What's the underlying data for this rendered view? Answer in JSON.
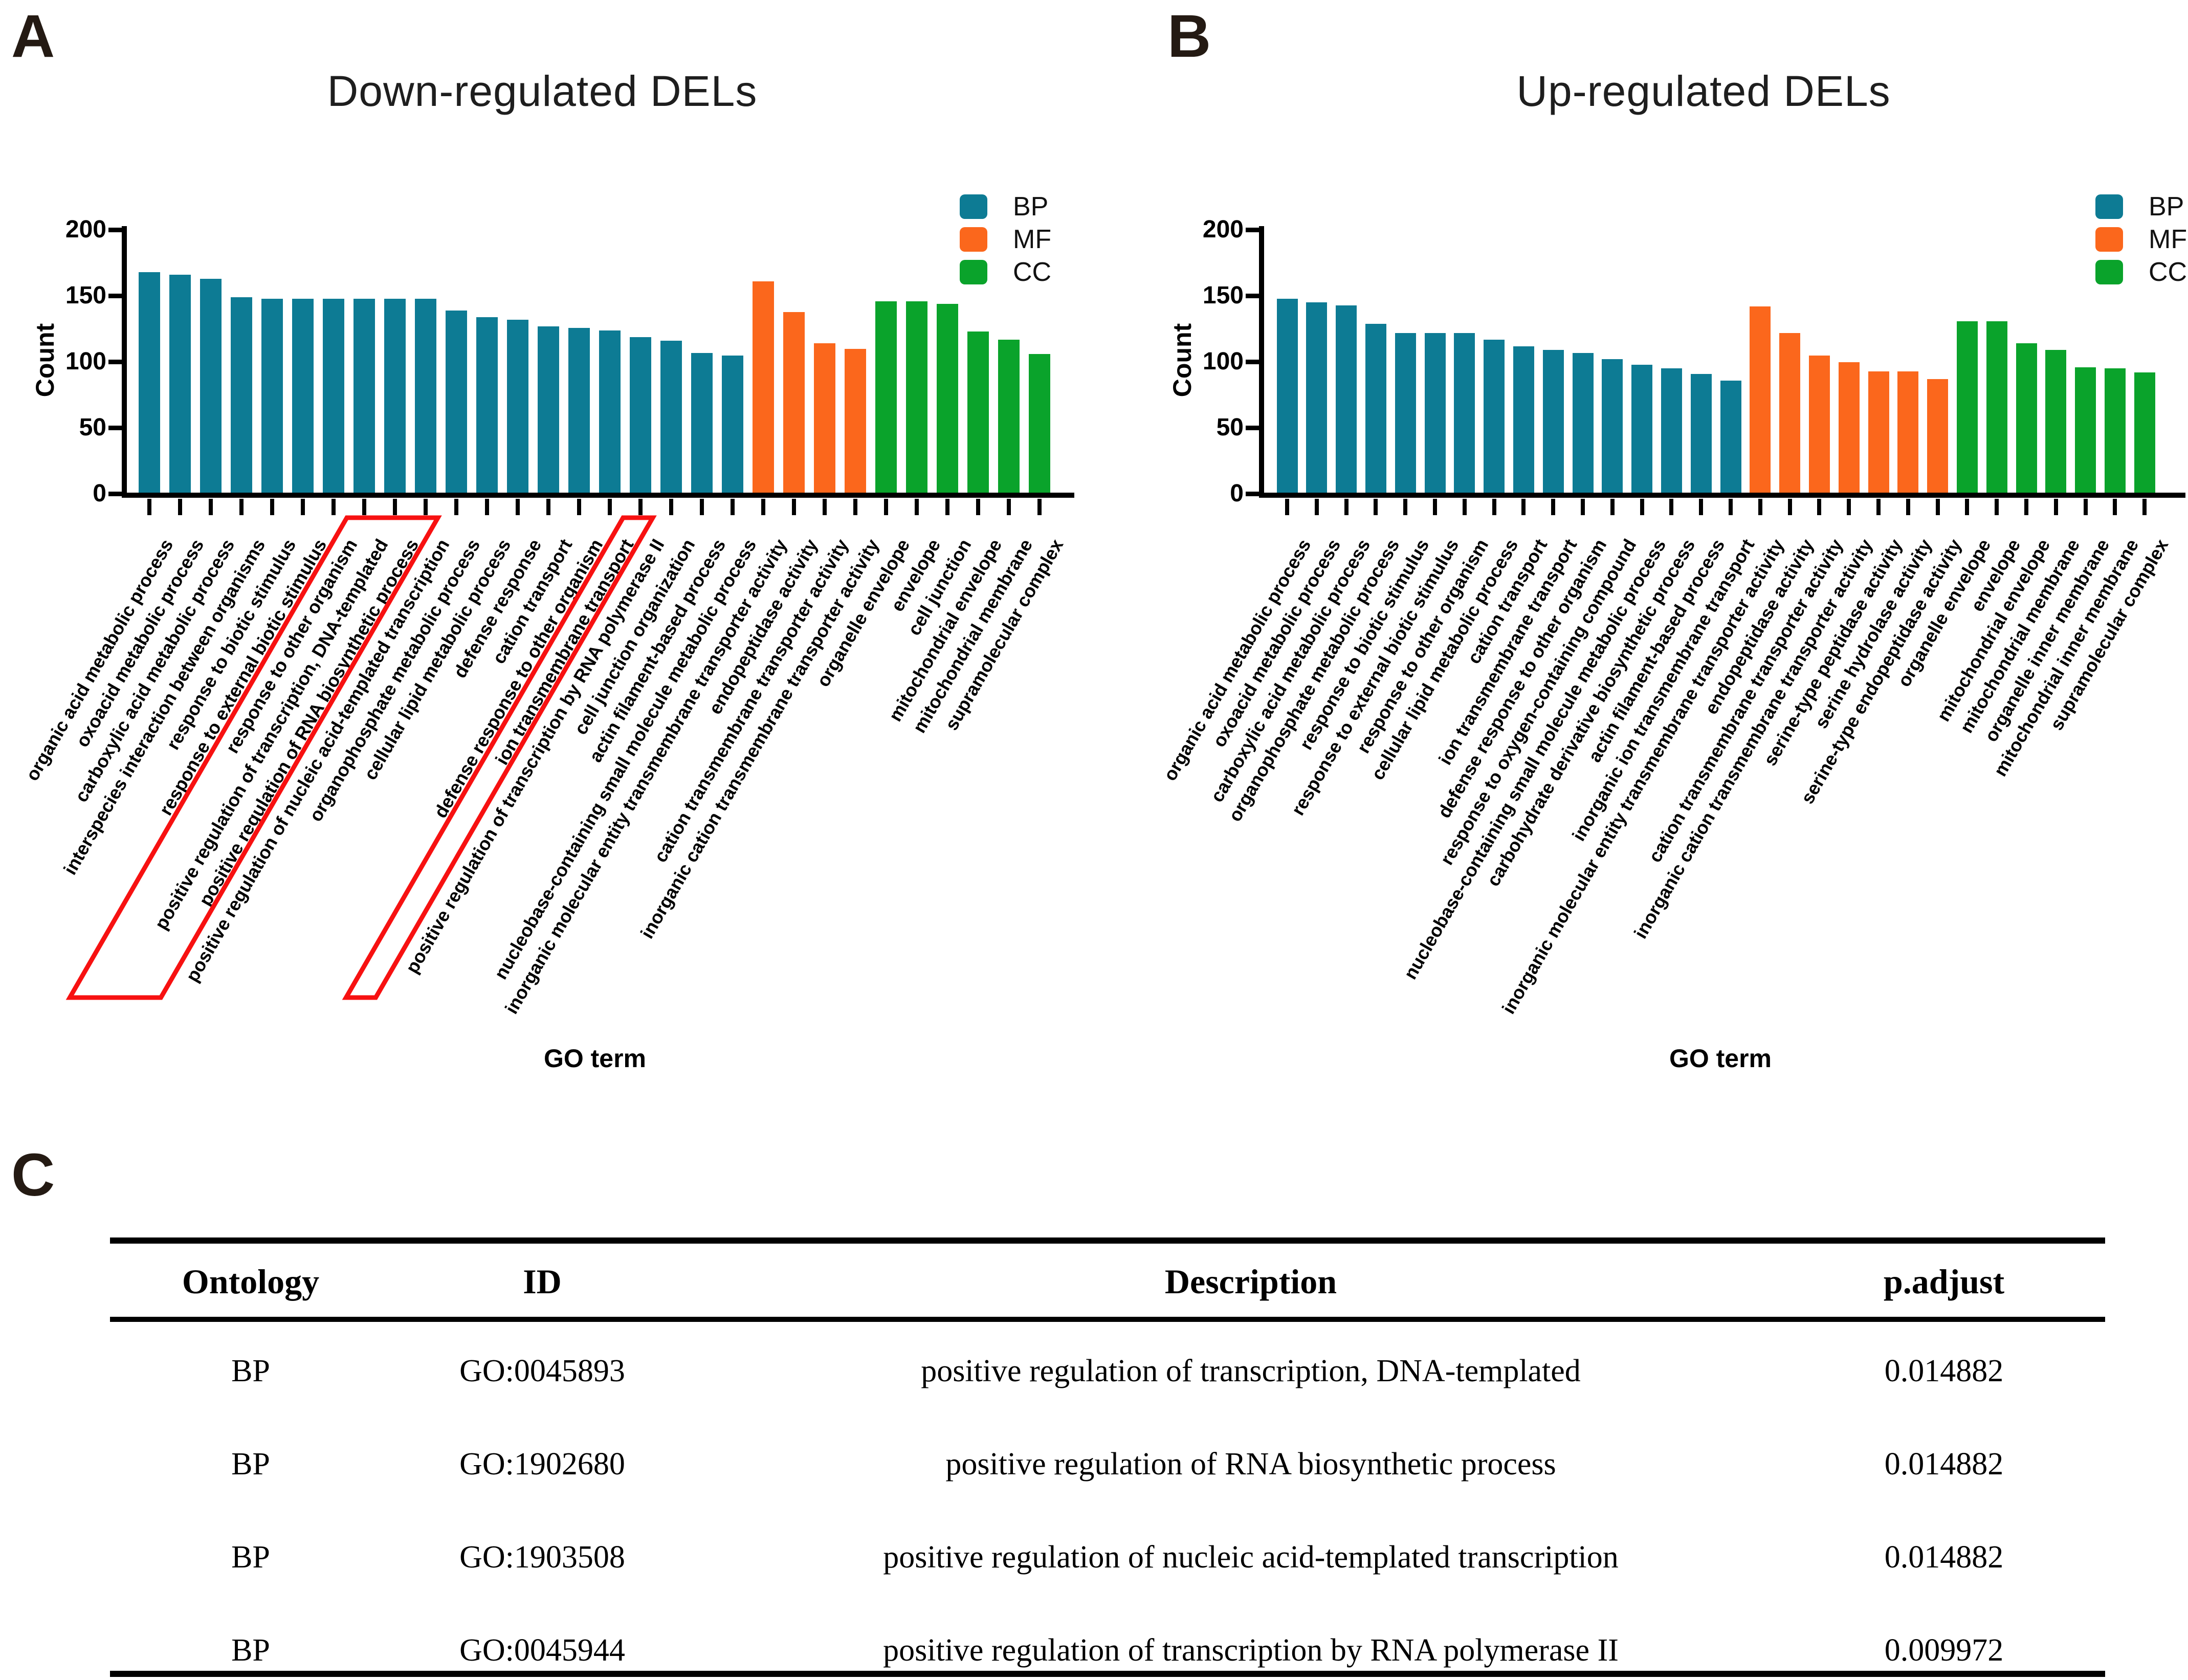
{
  "annotation_color": "#f71111",
  "panel_a": {
    "letter": "A",
    "title": "Down-regulated DELs",
    "ylabel": "Count",
    "xlabel": "GO term",
    "legend": [
      {
        "label": "BP",
        "color": "#0d7b94"
      },
      {
        "label": "MF",
        "color": "#fb671c"
      },
      {
        "label": "CC",
        "color": "#0aa32b"
      }
    ],
    "chart_data": {
      "type": "bar",
      "title": "Down-regulated DELs",
      "xlabel": "GO term",
      "ylabel": "Count",
      "ylim": [
        0,
        200
      ],
      "yticks": [
        0,
        50,
        100,
        150,
        200
      ],
      "legend_position": "top-right",
      "series": [
        {
          "name": "BP",
          "color": "#0d7b94",
          "categories": [
            "organic acid metabolic process",
            "oxoacid metabolic process",
            "carboxylic acid metabolic process",
            "interspecies interaction between organisms",
            "response to biotic stimulus",
            "response to external biotic stimulus",
            "response to other organism",
            "positive regulation of transcription, DNA-templated",
            "positive regulation of RNA biosynthetic process",
            "positive regulation of nucleic acid-templated transcription",
            "organophosphate metabolic process",
            "cellular lipid metabolic process",
            "defense response",
            "cation transport",
            "defense response to other organism",
            "ion transmembrane transport",
            "positive regulation of transcription by RNA polymerase II",
            "cell junction organization",
            "actin filament-based process",
            "nucleobase-containing small molecule metabolic process"
          ],
          "values": [
            167,
            165,
            162,
            148,
            147,
            147,
            147,
            147,
            147,
            147,
            138,
            133,
            131,
            126,
            125,
            123,
            118,
            115,
            106,
            104
          ]
        },
        {
          "name": "MF",
          "color": "#fb671c",
          "categories": [
            "inorganic molecular entity transmembrane transporter activity",
            "endopeptidase activity",
            "cation transmembrane transporter activity",
            "inorganic cation transmembrane transporter activity"
          ],
          "values": [
            160,
            137,
            113,
            109
          ]
        },
        {
          "name": "CC",
          "color": "#0aa32b",
          "categories": [
            "organelle envelope",
            "envelope",
            "cell junction",
            "mitochondrial envelope",
            "mitochondrial membrane",
            "supramolecular complex"
          ],
          "values": [
            145,
            145,
            143,
            122,
            116,
            105
          ]
        }
      ],
      "annotations": [
        {
          "type": "red-box",
          "categories": [
            "positive regulation of transcription, DNA-templated",
            "positive regulation of RNA biosynthetic process",
            "positive regulation of nucleic acid-templated transcription"
          ]
        },
        {
          "type": "red-box",
          "categories": [
            "positive regulation of transcription by RNA polymerase II"
          ]
        }
      ]
    }
  },
  "panel_b": {
    "letter": "B",
    "title": "Up-regulated DELs",
    "ylabel": "Count",
    "xlabel": "GO term",
    "legend": [
      {
        "label": "BP",
        "color": "#0d7b94"
      },
      {
        "label": "MF",
        "color": "#fb671c"
      },
      {
        "label": "CC",
        "color": "#0aa32b"
      }
    ],
    "chart_data": {
      "type": "bar",
      "title": "Up-regulated DELs",
      "xlabel": "GO term",
      "ylabel": "Count",
      "ylim": [
        0,
        200
      ],
      "yticks": [
        0,
        50,
        100,
        150,
        200
      ],
      "legend_position": "top-right",
      "series": [
        {
          "name": "BP",
          "color": "#0d7b94",
          "categories": [
            "organic acid metabolic process",
            "oxoacid metabolic process",
            "carboxylic acid metabolic process",
            "organophosphate metabolic process",
            "response to biotic stimulus",
            "response to external biotic stimulus",
            "response to other organism",
            "cellular lipid metabolic process",
            "cation transport",
            "ion transmembrane transport",
            "defense response to other organism",
            "response to oxygen-containing compound",
            "nucleobase-containing small molecule metabolic process",
            "carbohydrate derivative biosynthetic process",
            "actin filament-based process",
            "inorganic ion transmembrane transport"
          ],
          "values": [
            147,
            144,
            142,
            128,
            121,
            121,
            121,
            116,
            111,
            108,
            106,
            101,
            97,
            94,
            90,
            85
          ]
        },
        {
          "name": "MF",
          "color": "#fb671c",
          "categories": [
            "inorganic molecular entity transmembrane transporter activity",
            "endopeptidase activity",
            "cation transmembrane transporter activity",
            "inorganic cation transmembrane transporter activity",
            "serine-type peptidase activity",
            "serine hydrolase activity",
            "serine-type endopeptidase activity"
          ],
          "values": [
            141,
            121,
            104,
            99,
            92,
            92,
            86
          ]
        },
        {
          "name": "CC",
          "color": "#0aa32b",
          "categories": [
            "organelle envelope",
            "envelope",
            "mitochondrial envelope",
            "mitochondrial membrane",
            "organelle inner membrane",
            "mitochondrial inner membrane",
            "supramolecular complex"
          ],
          "values": [
            130,
            130,
            113,
            108,
            95,
            94,
            91
          ]
        }
      ],
      "annotations": []
    }
  },
  "panel_c": {
    "letter": "C",
    "table": {
      "headers": [
        "Ontology",
        "ID",
        "Description",
        "p.adjust"
      ],
      "rows": [
        [
          "BP",
          "GO:0045893",
          "positive regulation of transcription, DNA-templated",
          "0.014882"
        ],
        [
          "BP",
          "GO:1902680",
          "positive regulation of RNA biosynthetic process",
          "0.014882"
        ],
        [
          "BP",
          "GO:1903508",
          "positive regulation of nucleic acid-templated transcription",
          "0.014882"
        ],
        [
          "BP",
          "GO:0045944",
          "positive regulation of transcription by RNA polymerase II",
          "0.009972"
        ]
      ]
    }
  }
}
